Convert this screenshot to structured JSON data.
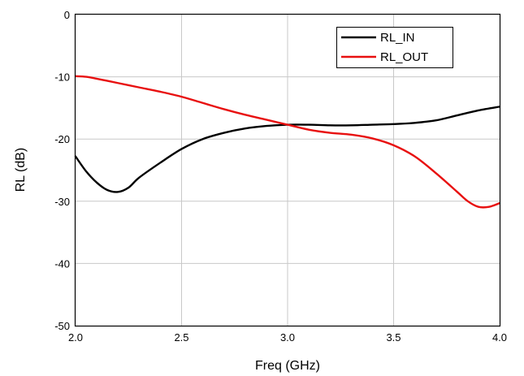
{
  "chart_data": {
    "type": "line",
    "xlabel": "Freq (GHz)",
    "ylabel": "RL (dB)",
    "xlim": [
      2.0,
      4.0
    ],
    "ylim": [
      -50,
      0
    ],
    "xticks": [
      2.0,
      2.5,
      3.0,
      3.5,
      4.0
    ],
    "xtick_labels": [
      "2.0",
      "2.5",
      "3.0",
      "3.5",
      "4.0"
    ],
    "yticks": [
      0,
      -10,
      -20,
      -30,
      -40,
      -50
    ],
    "ytick_labels": [
      "0",
      "-10",
      "-20",
      "-30",
      "-40",
      "-50"
    ],
    "grid": true,
    "legend_position": "top-right",
    "series": [
      {
        "name": "RL_IN",
        "color": "#000000",
        "x": [
          2.0,
          2.05,
          2.1,
          2.15,
          2.2,
          2.25,
          2.3,
          2.4,
          2.5,
          2.6,
          2.7,
          2.8,
          2.9,
          3.0,
          3.1,
          3.2,
          3.3,
          3.4,
          3.5,
          3.6,
          3.7,
          3.8,
          3.9,
          4.0
        ],
        "y": [
          -22.8,
          -25.2,
          -27.0,
          -28.2,
          -28.5,
          -27.8,
          -26.2,
          -23.8,
          -21.6,
          -20.0,
          -19.0,
          -18.3,
          -17.9,
          -17.7,
          -17.7,
          -17.8,
          -17.8,
          -17.7,
          -17.6,
          -17.4,
          -17.0,
          -16.2,
          -15.4,
          -14.8
        ]
      },
      {
        "name": "RL_OUT",
        "color": "#e81010",
        "x": [
          2.0,
          2.05,
          2.1,
          2.2,
          2.3,
          2.4,
          2.5,
          2.6,
          2.7,
          2.8,
          2.9,
          3.0,
          3.1,
          3.2,
          3.3,
          3.4,
          3.5,
          3.6,
          3.7,
          3.8,
          3.85,
          3.9,
          3.95,
          4.0
        ],
        "y": [
          -9.9,
          -10.0,
          -10.3,
          -11.0,
          -11.7,
          -12.4,
          -13.2,
          -14.2,
          -15.2,
          -16.1,
          -16.9,
          -17.7,
          -18.5,
          -19.0,
          -19.3,
          -19.9,
          -21.0,
          -22.8,
          -25.5,
          -28.5,
          -30.0,
          -30.9,
          -30.9,
          -30.3
        ]
      }
    ]
  }
}
